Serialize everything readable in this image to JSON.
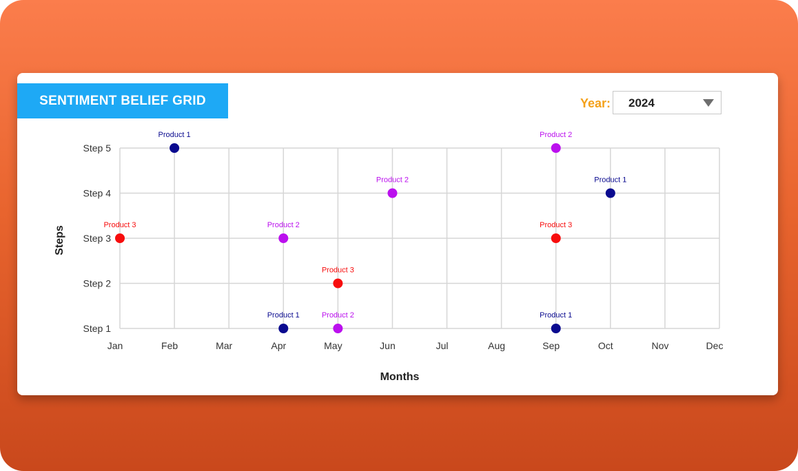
{
  "title": "SENTIMENT BELIEF GRID",
  "year_filter": {
    "label": "Year:",
    "value": "2024"
  },
  "colors": {
    "product1": "#0a0a8f",
    "product2": "#bb10ee",
    "product3": "#f70d0d",
    "title_bg": "#1ea9f5",
    "year_label": "#f4a11a"
  },
  "chart_data": {
    "type": "scatter",
    "xlabel": "Months",
    "ylabel": "Steps",
    "categories": [
      "Jan",
      "Feb",
      "Mar",
      "Apr",
      "May",
      "Jun",
      "Jul",
      "Aug",
      "Sep",
      "Oct",
      "Nov",
      "Dec"
    ],
    "y_categories": [
      "Step 1",
      "Step 2",
      "Step 3",
      "Step 4",
      "Step 5"
    ],
    "grid": true,
    "points": [
      {
        "series": "Product 1",
        "x": "Feb",
        "y": 5
      },
      {
        "series": "Product 3",
        "x": "Jan",
        "y": 3
      },
      {
        "series": "Product 2",
        "x": "Apr",
        "y": 3
      },
      {
        "series": "Product 1",
        "x": "Apr",
        "y": 1
      },
      {
        "series": "Product 3",
        "x": "May",
        "y": 2
      },
      {
        "series": "Product 2",
        "x": "May",
        "y": 1
      },
      {
        "series": "Product 2",
        "x": "Jun",
        "y": 4
      },
      {
        "series": "Product 2",
        "x": "Sep",
        "y": 5
      },
      {
        "series": "Product 3",
        "x": "Sep",
        "y": 3
      },
      {
        "series": "Product 1",
        "x": "Sep",
        "y": 1
      },
      {
        "series": "Product 1",
        "x": "Oct",
        "y": 4
      }
    ]
  }
}
